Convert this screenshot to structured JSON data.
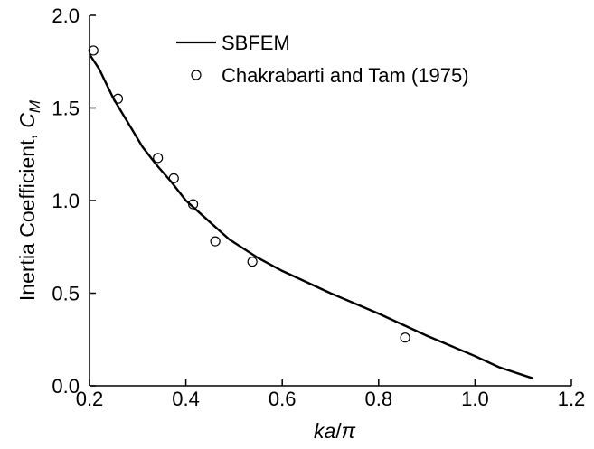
{
  "chart_data": {
    "type": "line",
    "xlabel_parts": [
      "ka",
      "/",
      "π"
    ],
    "ylabel_parts": [
      "Inertia Coefficient, ",
      "C",
      "M"
    ],
    "xlim": [
      0.2,
      1.2
    ],
    "ylim": [
      0.0,
      2.0
    ],
    "x_ticks": [
      0.2,
      0.4,
      0.6,
      0.8,
      1.0,
      1.2
    ],
    "x_tick_labels": [
      "0.2",
      "0.4",
      "0.6",
      "0.8",
      "1.0",
      "1.2"
    ],
    "y_ticks": [
      0.0,
      0.5,
      1.0,
      1.5,
      2.0
    ],
    "y_tick_labels": [
      "0.0",
      "0.5",
      "1.0",
      "1.5",
      "2.0"
    ],
    "grid": false,
    "legend_position": "top-right",
    "series": [
      {
        "name": "SBFEM",
        "style": "line",
        "color": "#000000",
        "x": [
          0.2,
          0.22,
          0.25,
          0.28,
          0.31,
          0.34,
          0.37,
          0.4,
          0.43,
          0.46,
          0.49,
          0.55,
          0.6,
          0.7,
          0.8,
          0.9,
          1.0,
          1.05,
          1.12
        ],
        "y": [
          1.79,
          1.71,
          1.55,
          1.42,
          1.29,
          1.19,
          1.1,
          1.0,
          0.93,
          0.86,
          0.79,
          0.69,
          0.62,
          0.5,
          0.39,
          0.27,
          0.16,
          0.1,
          0.04
        ]
      },
      {
        "name": "Chakrabarti and Tam (1975)",
        "style": "markers",
        "color": "#000000",
        "x": [
          0.208,
          0.259,
          0.342,
          0.375,
          0.415,
          0.461,
          0.538,
          0.855
        ],
        "y": [
          1.81,
          1.55,
          1.23,
          1.12,
          0.98,
          0.78,
          0.67,
          0.26
        ]
      }
    ]
  }
}
